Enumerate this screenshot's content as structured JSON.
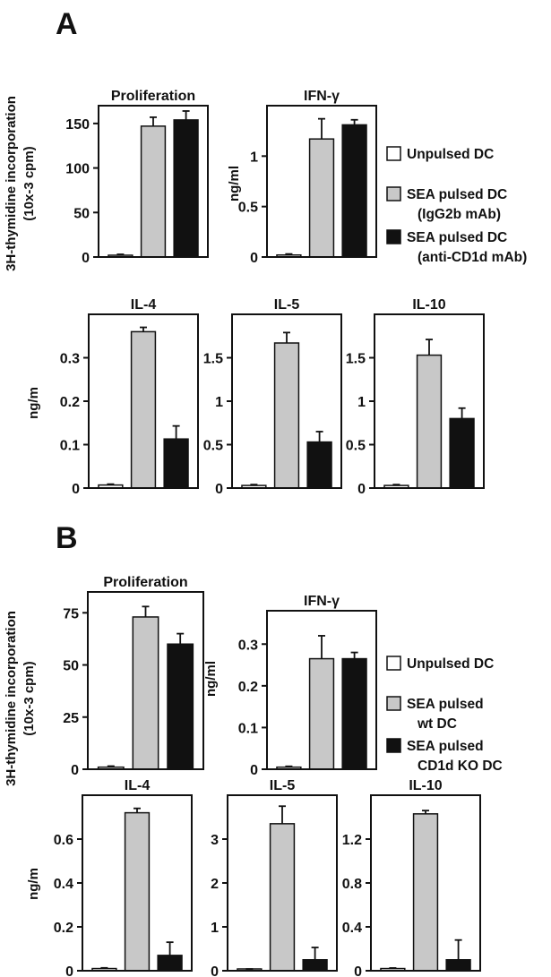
{
  "panels": [
    {
      "letter": "A",
      "legend": [
        {
          "label": "Unpulsed DC",
          "color": "#ffffff"
        },
        {
          "label": "SEA pulsed DC",
          "label2": "(IgG2b mAb)",
          "color": "#c8c8c8"
        },
        {
          "label": "SEA pulsed DC",
          "label2": "(anti-CD1d mAb)",
          "color": "#111111"
        }
      ]
    },
    {
      "letter": "B",
      "legend": [
        {
          "label": "Unpulsed DC",
          "color": "#ffffff"
        },
        {
          "label": "SEA pulsed",
          "label2": "wt DC",
          "color": "#c8c8c8"
        },
        {
          "label": "SEA pulsed",
          "label2": "CD1d KO DC",
          "color": "#111111"
        }
      ]
    }
  ],
  "chart_data": [
    {
      "type": "bar",
      "panel": "A",
      "title": "Proliferation",
      "ylabel": "3H-thymidine incorporation",
      "ylabel2": "(10x-3 cpm)",
      "categories": [
        "Unpulsed DC",
        "SEA pulsed DC (IgG2b mAb)",
        "SEA pulsed DC (anti-CD1d mAb)"
      ],
      "values": [
        2,
        147,
        154
      ],
      "errors": [
        1,
        10,
        10
      ],
      "ylim": [
        0,
        170
      ],
      "yticks": [
        0,
        50,
        100,
        150
      ],
      "yticklabels": [
        "0",
        "50",
        "100",
        "150"
      ],
      "colors": [
        "#ffffff",
        "#c8c8c8",
        "#111111"
      ]
    },
    {
      "type": "bar",
      "panel": "A",
      "title": "IFN-γ",
      "ylabel": "ng/ml",
      "categories": [
        "Unpulsed DC",
        "SEA pulsed DC (IgG2b mAb)",
        "SEA pulsed DC (anti-CD1d mAb)"
      ],
      "values": [
        0.02,
        1.17,
        1.31
      ],
      "errors": [
        0.01,
        0.2,
        0.05
      ],
      "ylim": [
        0,
        1.5
      ],
      "yticks": [
        0,
        0.5,
        1
      ],
      "yticklabels": [
        "0",
        "0.5",
        "1"
      ],
      "colors": [
        "#ffffff",
        "#c8c8c8",
        "#111111"
      ]
    },
    {
      "type": "bar",
      "panel": "A",
      "title": "IL-4",
      "ylabel": "ng/m",
      "categories": [
        "Unpulsed DC",
        "SEA pulsed DC (IgG2b mAb)",
        "SEA pulsed DC (anti-CD1d mAb)"
      ],
      "values": [
        0.007,
        0.36,
        0.113
      ],
      "errors": [
        0.002,
        0.01,
        0.03
      ],
      "ylim": [
        0,
        0.4
      ],
      "yticks": [
        0,
        0.1,
        0.2,
        0.3
      ],
      "yticklabels": [
        "0",
        "0.1",
        "0.2",
        "0.3"
      ],
      "colors": [
        "#ffffff",
        "#c8c8c8",
        "#111111"
      ]
    },
    {
      "type": "bar",
      "panel": "A",
      "title": "IL-5",
      "ylabel": "",
      "categories": [
        "Unpulsed DC",
        "SEA pulsed DC (IgG2b mAb)",
        "SEA pulsed DC (anti-CD1d mAb)"
      ],
      "values": [
        0.03,
        1.67,
        0.53
      ],
      "errors": [
        0.01,
        0.12,
        0.12
      ],
      "ylim": [
        0,
        2.0
      ],
      "yticks": [
        0,
        0.5,
        1,
        1.5
      ],
      "yticklabels": [
        "0",
        "0.5",
        "1",
        "1.5"
      ],
      "colors": [
        "#ffffff",
        "#c8c8c8",
        "#111111"
      ]
    },
    {
      "type": "bar",
      "panel": "A",
      "title": "IL-10",
      "ylabel": "",
      "categories": [
        "Unpulsed DC",
        "SEA pulsed DC (IgG2b mAb)",
        "SEA pulsed DC (anti-CD1d mAb)"
      ],
      "values": [
        0.03,
        1.53,
        0.8
      ],
      "errors": [
        0.01,
        0.18,
        0.12
      ],
      "ylim": [
        0,
        2.0
      ],
      "yticks": [
        0,
        0.5,
        1,
        1.5
      ],
      "yticklabels": [
        "0",
        "0.5",
        "1",
        "1.5"
      ],
      "colors": [
        "#ffffff",
        "#c8c8c8",
        "#111111"
      ]
    },
    {
      "type": "bar",
      "panel": "B",
      "title": "Proliferation",
      "ylabel": "3H-thymidine incorporation",
      "ylabel2": "(10x-3 cpm)",
      "categories": [
        "Unpulsed DC",
        "SEA pulsed wt DC",
        "SEA pulsed CD1d KO DC"
      ],
      "values": [
        1,
        73,
        60
      ],
      "errors": [
        0.5,
        5,
        5
      ],
      "ylim": [
        0,
        85
      ],
      "yticks": [
        0,
        25,
        50,
        75
      ],
      "yticklabels": [
        "0",
        "25",
        "50",
        "75"
      ],
      "colors": [
        "#ffffff",
        "#c8c8c8",
        "#111111"
      ]
    },
    {
      "type": "bar",
      "panel": "B",
      "title": "IFN-γ",
      "ylabel": "ng/ml",
      "categories": [
        "Unpulsed DC",
        "SEA pulsed wt DC",
        "SEA pulsed CD1d KO DC"
      ],
      "values": [
        0.005,
        0.265,
        0.265
      ],
      "errors": [
        0.002,
        0.055,
        0.015
      ],
      "ylim": [
        0,
        0.38
      ],
      "yticks": [
        0,
        0.1,
        0.2,
        0.3
      ],
      "yticklabels": [
        "0",
        "0.1",
        "0.2",
        "0.3"
      ],
      "colors": [
        "#ffffff",
        "#c8c8c8",
        "#111111"
      ]
    },
    {
      "type": "bar",
      "panel": "B",
      "title": "IL-4",
      "ylabel": "ng/m",
      "categories": [
        "Unpulsed DC",
        "SEA pulsed wt DC",
        "SEA pulsed CD1d KO DC"
      ],
      "values": [
        0.01,
        0.72,
        0.07
      ],
      "errors": [
        0.003,
        0.02,
        0.06
      ],
      "ylim": [
        0,
        0.8
      ],
      "yticks": [
        0,
        0.2,
        0.4,
        0.6
      ],
      "yticklabels": [
        "0",
        "0.2",
        "0.4",
        "0.6"
      ],
      "colors": [
        "#ffffff",
        "#c8c8c8",
        "#111111"
      ]
    },
    {
      "type": "bar",
      "panel": "B",
      "title": "IL-5",
      "ylabel": "",
      "categories": [
        "Unpulsed DC",
        "SEA pulsed wt DC",
        "SEA pulsed CD1d KO DC"
      ],
      "values": [
        0.03,
        3.35,
        0.25
      ],
      "errors": [
        0.01,
        0.4,
        0.28
      ],
      "ylim": [
        0,
        4
      ],
      "yticks": [
        0,
        1,
        2,
        3
      ],
      "yticklabels": [
        "0",
        "1",
        "2",
        "3"
      ],
      "colors": [
        "#ffffff",
        "#c8c8c8",
        "#111111"
      ]
    },
    {
      "type": "bar",
      "panel": "B",
      "title": "IL-10",
      "ylabel": "",
      "categories": [
        "Unpulsed DC",
        "SEA pulsed wt DC",
        "SEA pulsed CD1d KO DC"
      ],
      "values": [
        0.02,
        1.43,
        0.1
      ],
      "errors": [
        0.005,
        0.03,
        0.18
      ],
      "ylim": [
        0,
        1.6
      ],
      "yticks": [
        0,
        0.4,
        0.8,
        1.2
      ],
      "yticklabels": [
        "0",
        "0.4",
        "0.8",
        "1.2"
      ],
      "colors": [
        "#ffffff",
        "#c8c8c8",
        "#111111"
      ]
    }
  ]
}
